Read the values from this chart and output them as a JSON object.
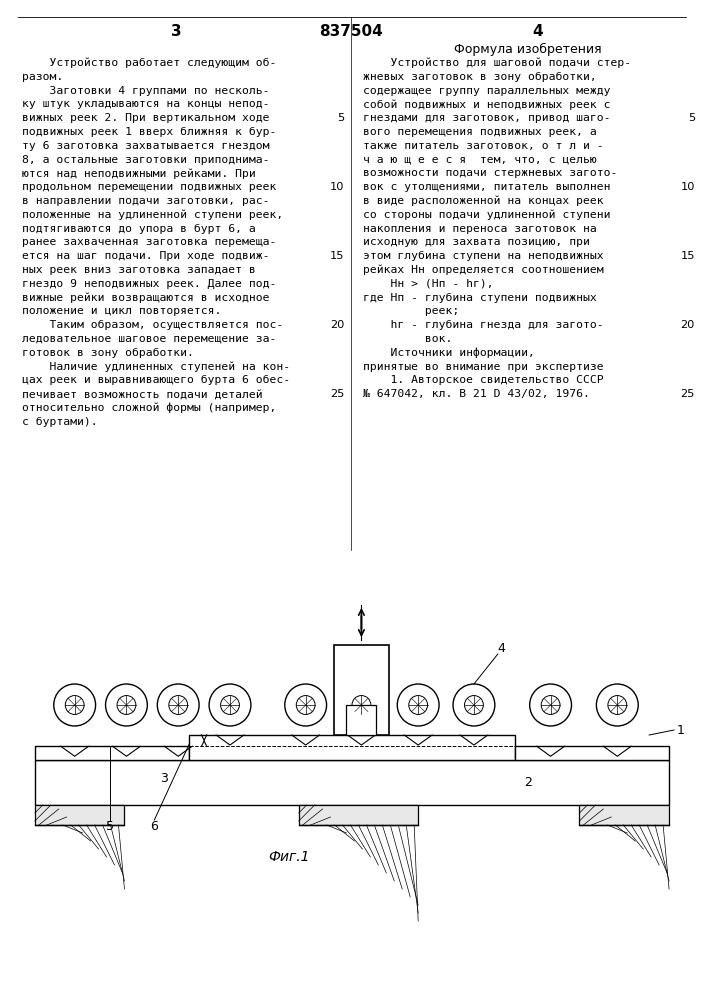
{
  "page_number_left": "3",
  "patent_number": "837504",
  "page_number_right": "4",
  "right_column_title": "Формула изобретения",
  "left_column_text": [
    "    Устройство работает следующим об-",
    "разом.",
    "    Заготовки 4 группами по несколь-",
    "ку штук укладываются на концы непод-",
    "вижных реек 2. При вертикальном ходе",
    "подвижных реек 1 вверх ближняя к бур-",
    "ту 6 заготовка захватывается гнездом",
    "8, а остальные заготовки приподнима-",
    "ются над неподвижными рейками. При",
    "продольном перемещении подвижных реек",
    "в направлении подачи заготовки, рас-",
    "положенные на удлиненной ступени реек,",
    "подтягиваются до упора в бурт 6, а",
    "ранее захваченная заготовка перемеща-",
    "ется на шаг подачи. При ходе подвиж-",
    "ных реек вниз заготовка западает в",
    "гнездо 9 неподвижных реек. Далее под-",
    "вижные рейки возвращаются в исходное",
    "положение и цикл повторяется.",
    "    Таким образом, осуществляется пос-",
    "ледовательное шаговое перемещение за-",
    "готовок в зону обработки.",
    "    Наличие удлиненных ступеней на кон-",
    "цах реек и выравнивающего бурта 6 обес-",
    "печивает возможность подачи деталей",
    "относительно сложной формы (например,",
    "с буртами)."
  ],
  "right_column_text": [
    "    Устройство для шаговой подачи стер-",
    "жневых заготовок в зону обработки,",
    "содержащее группу параллельных между",
    "собой подвижных и неподвижных реек с",
    "гнездами для заготовок, привод шаго-",
    "вого перемещения подвижных реек, а",
    "также питатель заготовок, о т л и -",
    "ч а ю щ е е с я  тем, что, с целью",
    "возможности подачи стержневых загото-",
    "вок с утолщениями, питатель выполнен",
    "в виде расположенной на концах реек",
    "со стороны подачи удлиненной ступени",
    "накопления и переноса заготовок на",
    "исходную для захвата позицию, при",
    "этом глубина ступени на неподвижных",
    "рейках Нн определяется соотношением",
    "    Нн > (Нп - hг),",
    "где Нп - глубина ступени подвижных",
    "         реек;",
    "    hг - глубина гнезда для загото-",
    "         вок.",
    "    Источники информации,",
    "принятые во внимание при экспертизе",
    "    1. Авторское свидетельство СССР",
    "№ 647042, кл. B 21 D 43/02, 1976."
  ],
  "figure_label": "Фиг.1",
  "background_color": "#ffffff",
  "text_color": "#000000",
  "font_size": 8.2
}
